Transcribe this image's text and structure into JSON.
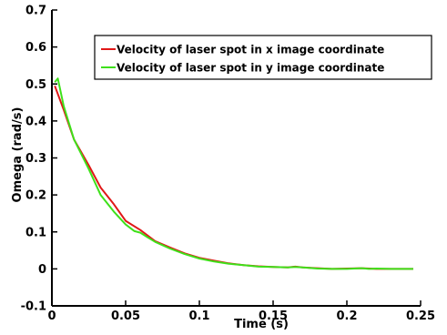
{
  "chart_data": {
    "type": "line",
    "title": "",
    "xlabel": "Time (s)",
    "ylabel": "Omega (rad/s)",
    "xlim": [
      0,
      0.25
    ],
    "ylim": [
      -0.1,
      0.7
    ],
    "x_ticks": [
      "0",
      "0.05",
      "0.1",
      "0.15",
      "0.2",
      "0.25"
    ],
    "y_ticks": [
      "-0.1",
      "0",
      "0.1",
      "0.2",
      "0.3",
      "0.4",
      "0.5",
      "0.6",
      "0.7"
    ],
    "legend_position": "top-right",
    "grid": false,
    "series": [
      {
        "name": "Velocity of laser spot in x image coordinate",
        "color": "#e01818",
        "x": [
          0.002,
          0.008,
          0.015,
          0.025,
          0.033,
          0.042,
          0.05,
          0.06,
          0.07,
          0.08,
          0.09,
          0.1,
          0.11,
          0.12,
          0.13,
          0.14,
          0.15,
          0.16,
          0.165,
          0.17,
          0.18,
          0.19,
          0.2,
          0.21,
          0.215,
          0.22,
          0.23,
          0.245
        ],
        "y": [
          0.495,
          0.43,
          0.35,
          0.28,
          0.22,
          0.175,
          0.13,
          0.105,
          0.075,
          0.058,
          0.042,
          0.03,
          0.022,
          0.015,
          0.01,
          0.007,
          0.005,
          0.004,
          0.006,
          0.004,
          0.002,
          0.0,
          0.001,
          0.002,
          0.001,
          0.0,
          0.0,
          0.0
        ]
      },
      {
        "name": "Velocity of laser spot in y image coordinate",
        "color": "#3ee01a",
        "x": [
          0.002,
          0.004,
          0.008,
          0.015,
          0.025,
          0.033,
          0.042,
          0.05,
          0.056,
          0.06,
          0.065,
          0.07,
          0.08,
          0.09,
          0.1,
          0.11,
          0.12,
          0.13,
          0.14,
          0.15,
          0.16,
          0.165,
          0.17,
          0.18,
          0.19,
          0.2,
          0.21,
          0.215,
          0.22,
          0.23,
          0.245
        ],
        "y": [
          0.505,
          0.515,
          0.44,
          0.35,
          0.27,
          0.2,
          0.155,
          0.12,
          0.102,
          0.098,
          0.085,
          0.073,
          0.055,
          0.04,
          0.028,
          0.02,
          0.014,
          0.01,
          0.006,
          0.005,
          0.004,
          0.005,
          0.004,
          0.001,
          0.0,
          0.0,
          0.002,
          0.0,
          0.001,
          0.0,
          0.0
        ]
      }
    ]
  }
}
